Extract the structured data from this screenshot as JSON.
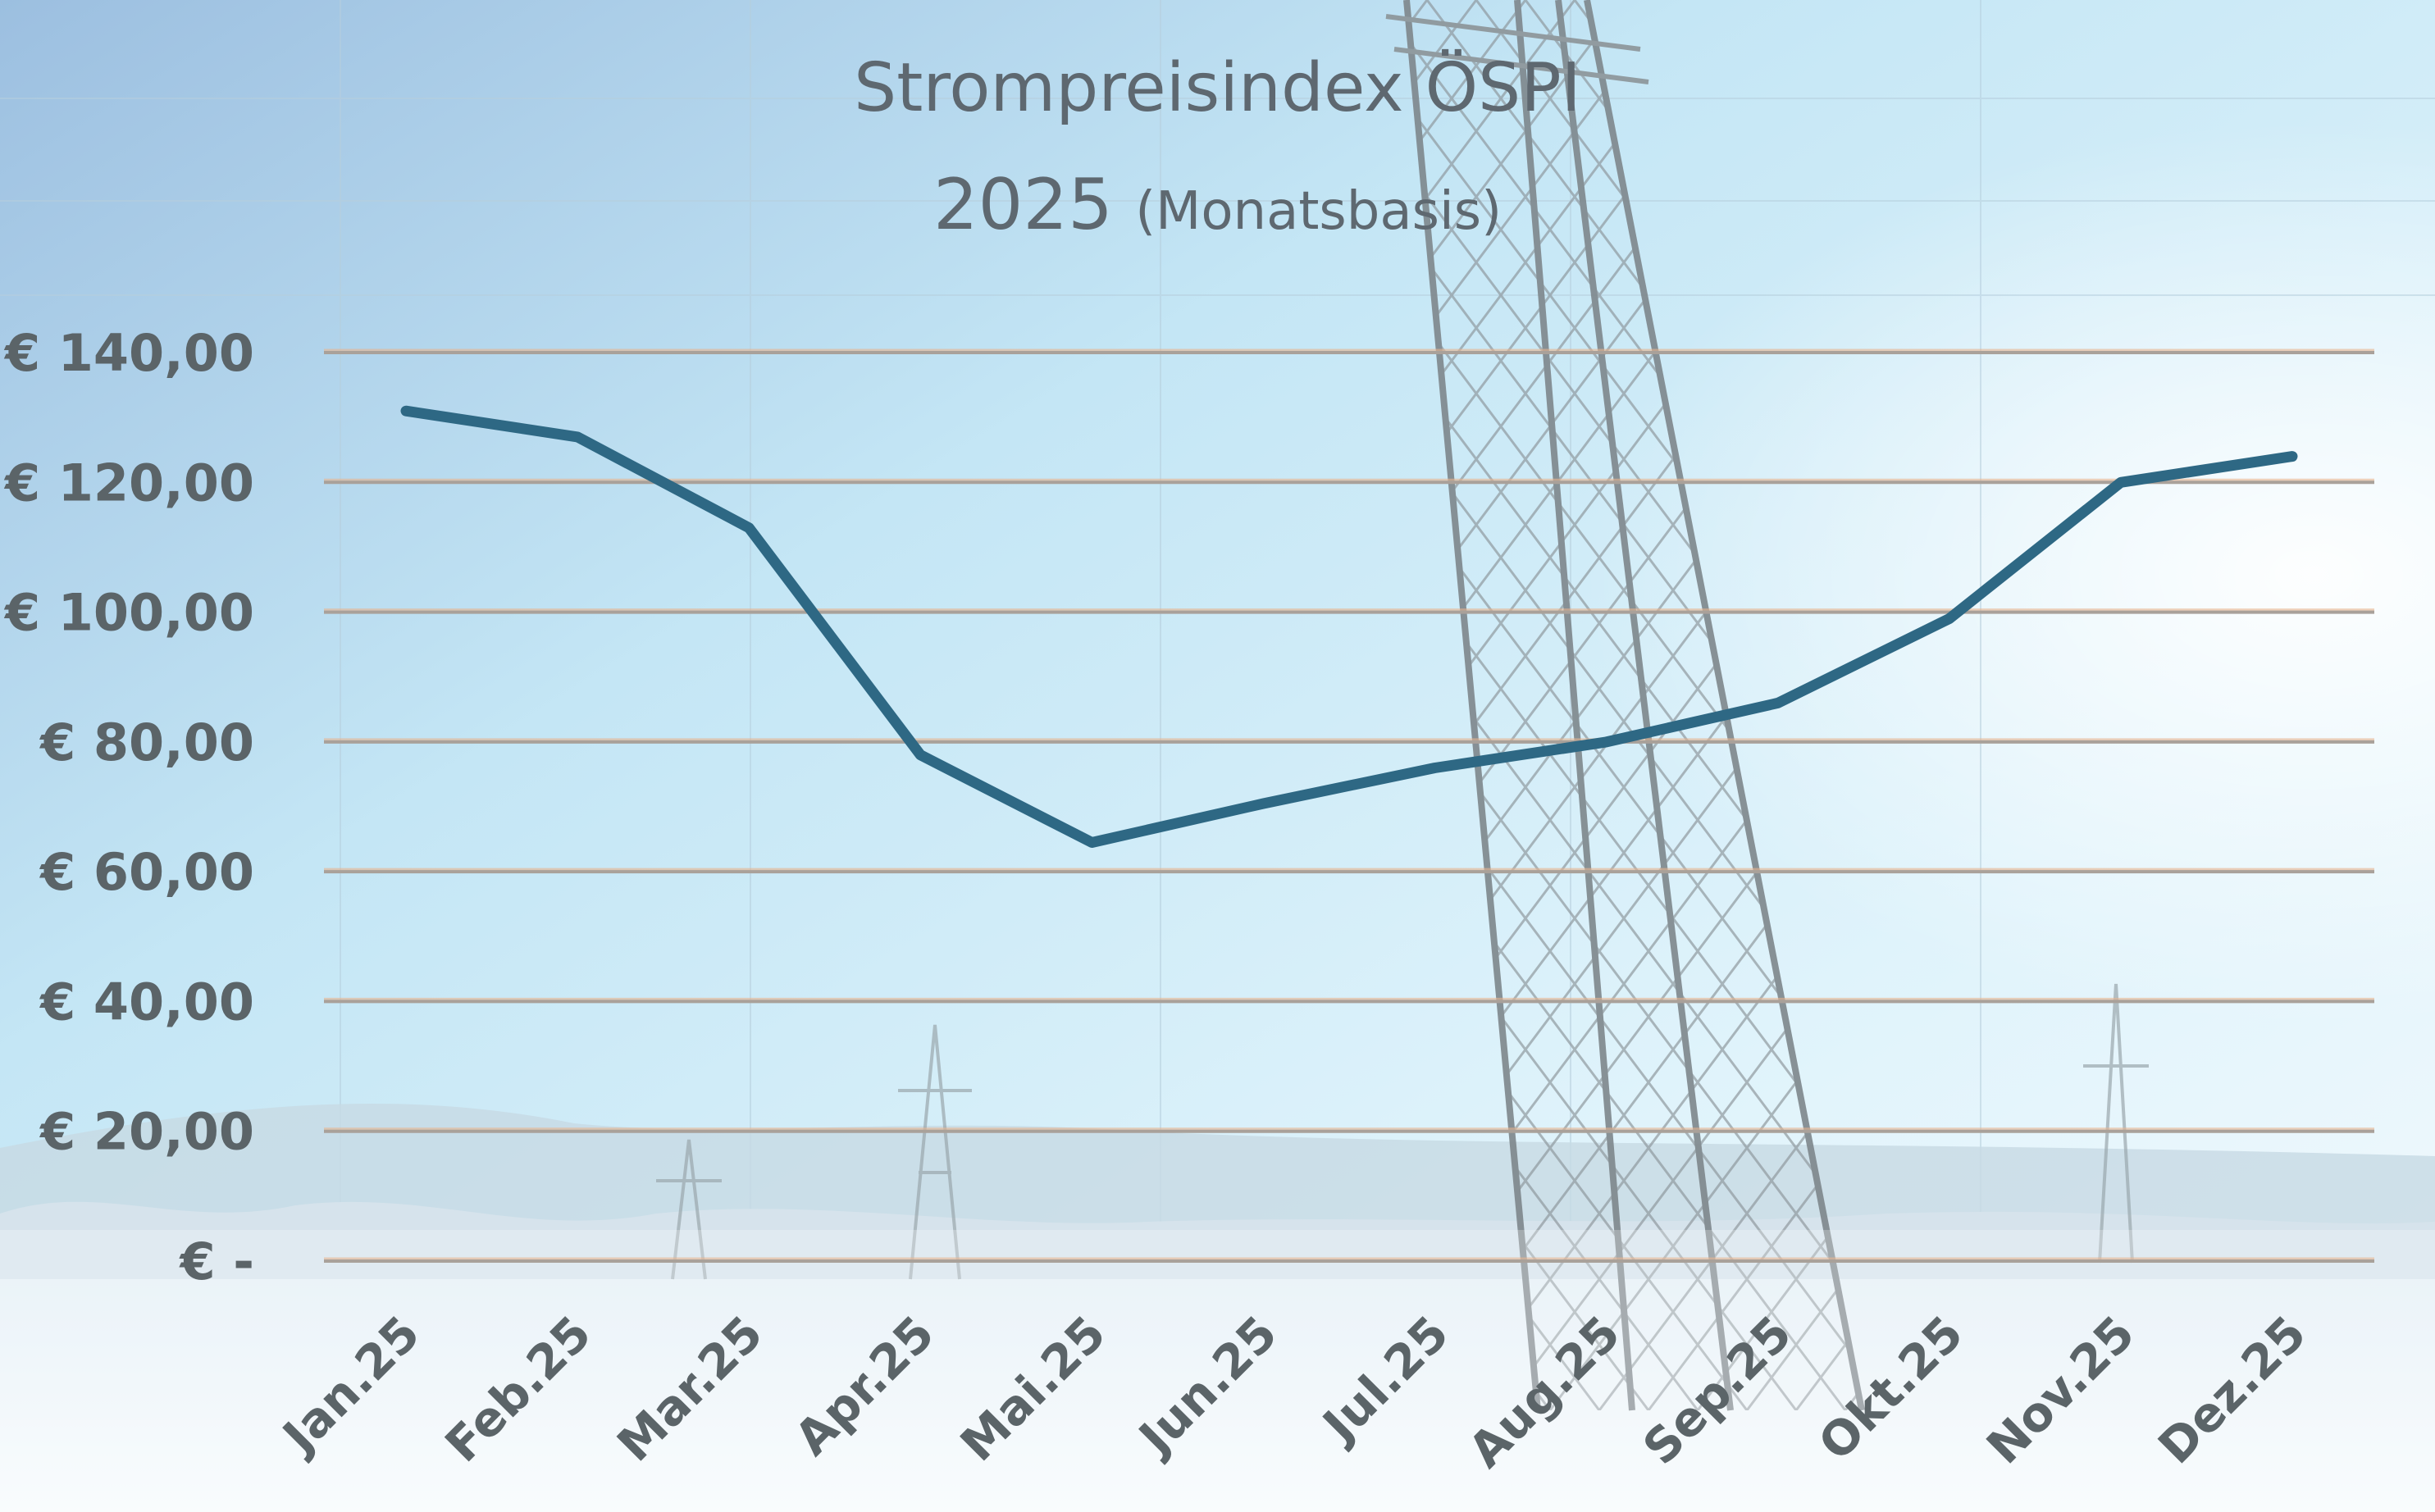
{
  "chart_data": {
    "type": "line",
    "title": "Strompreisindex ÖSPI",
    "subtitle_year": "2025",
    "subtitle_note": "(Monatsbasis)",
    "categories": [
      "Jan.25",
      "Feb.25",
      "Mar.25",
      "Apr.25",
      "Mai.25",
      "Jun.25",
      "Jul.25",
      "Aug.25",
      "Sep.25",
      "Okt.25",
      "Nov.25",
      "Dez.25"
    ],
    "series": [
      {
        "values": [
          131,
          127,
          113,
          78,
          64.5,
          70.5,
          76,
          80,
          86,
          99,
          120,
          124
        ]
      }
    ],
    "ylim": [
      0,
      140
    ],
    "yticks": [
      0,
      20,
      40,
      60,
      80,
      100,
      120,
      140
    ],
    "ytick_labels": [
      "€ -",
      "€ 20,00",
      "€ 40,00",
      "€ 60,00",
      "€ 80,00",
      "€ 100,00",
      "€ 120,00",
      "€ 140,00"
    ],
    "grid": true,
    "legend": "none",
    "colors": {
      "line": "#2e6884",
      "grid": "#a9a19a",
      "grid_highlight": "#e8b48e",
      "tick_text": "#5b6468",
      "title_text": "#5e6870",
      "sky_top": "#9fc8e6",
      "sky_mid": "#cdeaf6",
      "snow": "#f2f7fb",
      "pylon": "#8c9498"
    }
  }
}
